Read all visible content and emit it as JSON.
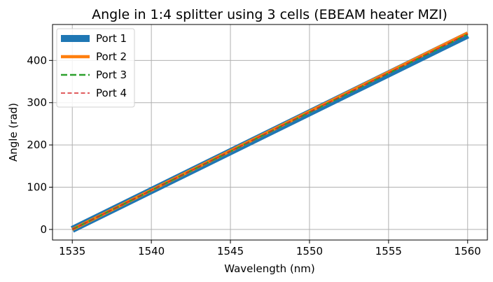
{
  "chart_data": {
    "type": "line",
    "title": "Angle in 1:4 splitter using 3 cells (EBEAM heater MZI)",
    "xlabel": "Wavelength (nm)",
    "ylabel": "Angle (rad)",
    "xlim": [
      1533.75,
      1561.25
    ],
    "ylim": [
      -25,
      485
    ],
    "xticks": [
      1535,
      1540,
      1545,
      1550,
      1555,
      1560
    ],
    "yticks": [
      0,
      100,
      200,
      300,
      400
    ],
    "grid": true,
    "legend_position": "upper-left",
    "series": [
      {
        "name": "Port 1",
        "color": "#1f77b4",
        "style": "solid",
        "weight": "heavy",
        "x": [
          1535,
          1560
        ],
        "y": [
          0,
          460
        ]
      },
      {
        "name": "Port 2",
        "color": "#ff7f0e",
        "style": "solid",
        "weight": "medium",
        "x": [
          1535,
          1560
        ],
        "y": [
          0,
          465
        ]
      },
      {
        "name": "Port 3",
        "color": "#2ca02c",
        "style": "dashed",
        "weight": "light",
        "x": [
          1535,
          1560
        ],
        "y": [
          0,
          462
        ]
      },
      {
        "name": "Port 4",
        "color": "#d62728",
        "style": "dashed",
        "weight": "thin",
        "x": [
          1535,
          1560
        ],
        "y": [
          0,
          463
        ]
      }
    ]
  }
}
